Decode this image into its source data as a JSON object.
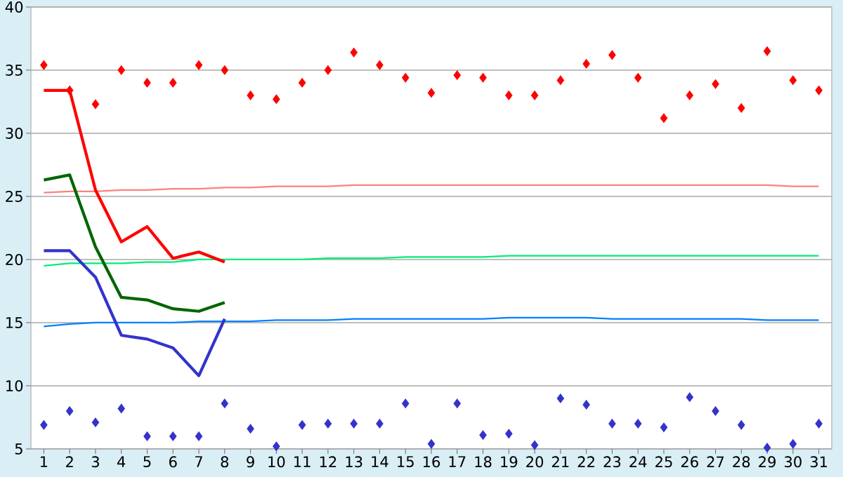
{
  "chart_data": {
    "type": "line",
    "categories": [
      "1",
      "2",
      "3",
      "4",
      "5",
      "6",
      "7",
      "8",
      "9",
      "10",
      "11",
      "12",
      "13",
      "14",
      "15",
      "16",
      "17",
      "18",
      "19",
      "20",
      "21",
      "22",
      "23",
      "24",
      "25",
      "26",
      "27",
      "28",
      "29",
      "30",
      "31"
    ],
    "series": [
      {
        "color": "#ff8080",
        "values": [
          25.3,
          25.4,
          25.4,
          25.5,
          25.5,
          25.6,
          25.6,
          25.7,
          25.7,
          25.8,
          25.8,
          25.8,
          25.9,
          25.9,
          25.9,
          25.9,
          25.9,
          25.9,
          25.9,
          25.9,
          25.9,
          25.9,
          25.9,
          25.9,
          25.9,
          25.9,
          25.9,
          25.9,
          25.9,
          25.8,
          25.8
        ]
      },
      {
        "color": "#00ee77",
        "values": [
          19.5,
          19.7,
          19.7,
          19.7,
          19.8,
          19.8,
          20.0,
          20.0,
          20.0,
          20.0,
          20.0,
          20.1,
          20.1,
          20.1,
          20.2,
          20.2,
          20.2,
          20.2,
          20.3,
          20.3,
          20.3,
          20.3,
          20.3,
          20.3,
          20.3,
          20.3,
          20.3,
          20.3,
          20.3,
          20.3,
          20.3
        ]
      },
      {
        "color": "#0080ff",
        "values": [
          14.7,
          14.9,
          15.0,
          15.0,
          15.0,
          15.0,
          15.1,
          15.1,
          15.1,
          15.2,
          15.2,
          15.2,
          15.3,
          15.3,
          15.3,
          15.3,
          15.3,
          15.3,
          15.4,
          15.4,
          15.4,
          15.4,
          15.3,
          15.3,
          15.3,
          15.3,
          15.3,
          15.3,
          15.2,
          15.2,
          15.2
        ]
      },
      {
        "color": "#ff0000",
        "values": [
          33.4,
          33.4,
          25.5,
          21.4,
          22.6,
          20.1,
          20.6,
          19.8,
          null,
          null,
          null,
          null,
          null,
          null,
          null,
          null,
          null,
          null,
          null,
          null,
          null,
          null,
          null,
          null,
          null,
          null,
          null,
          null,
          null,
          null,
          null
        ]
      },
      {
        "color": "#006600",
        "values": [
          26.3,
          26.7,
          21.0,
          17.0,
          16.8,
          16.1,
          15.9,
          16.6,
          null,
          null,
          null,
          null,
          null,
          null,
          null,
          null,
          null,
          null,
          null,
          null,
          null,
          null,
          null,
          null,
          null,
          null,
          null,
          null,
          null,
          null,
          null
        ]
      },
      {
        "color": "#3333cc",
        "values": [
          20.7,
          20.7,
          18.6,
          14.0,
          13.7,
          13.0,
          10.8,
          15.3,
          null,
          null,
          null,
          null,
          null,
          null,
          null,
          null,
          null,
          null,
          null,
          null,
          null,
          null,
          null,
          null,
          null,
          null,
          null,
          null,
          null,
          null,
          null
        ]
      },
      {
        "type": "scatter",
        "marker": "diamond",
        "color": "#ff0000",
        "values": [
          35.4,
          33.4,
          32.3,
          35.0,
          34.0,
          34.0,
          35.4,
          35.0,
          33.0,
          32.7,
          34.0,
          35.0,
          36.4,
          35.4,
          34.4,
          33.2,
          34.6,
          34.4,
          33.0,
          33.0,
          34.2,
          35.5,
          36.2,
          34.4,
          31.2,
          33.0,
          33.9,
          32.0,
          36.5,
          34.2,
          33.4
        ]
      },
      {
        "type": "scatter",
        "marker": "diamond",
        "color": "#3333cc",
        "values": [
          6.9,
          8.0,
          7.1,
          8.2,
          6.0,
          6.0,
          6.0,
          8.6,
          6.6,
          5.2,
          6.9,
          7.0,
          7.0,
          7.0,
          8.6,
          5.4,
          8.6,
          6.1,
          6.2,
          5.3,
          9.0,
          8.5,
          7.0,
          7.0,
          6.7,
          9.1,
          8.0,
          6.9,
          5.1,
          5.4,
          7.0
        ]
      }
    ],
    "ylim": [
      5,
      40
    ],
    "yticks": [
      5,
      10,
      15,
      20,
      25,
      30,
      35,
      40
    ],
    "grid": "y",
    "marker": "none",
    "line_style": "solid"
  }
}
